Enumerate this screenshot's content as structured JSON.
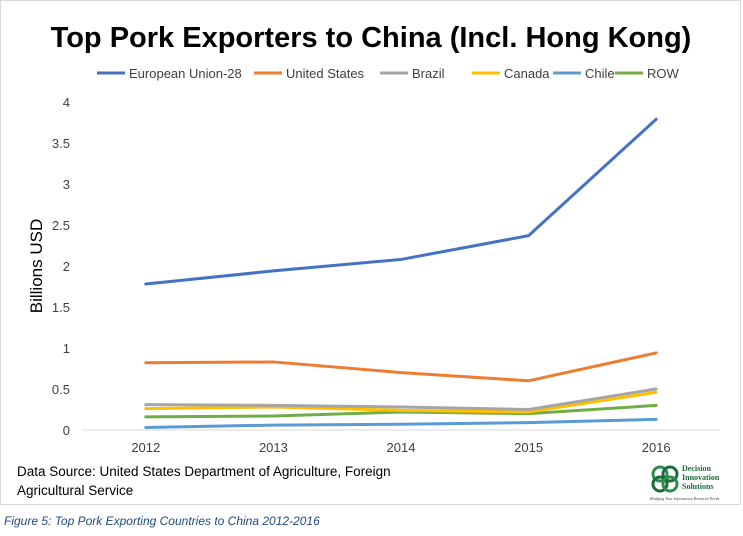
{
  "chart_data": {
    "type": "line",
    "title": "Top Pork Exporters to China (Incl. Hong Kong)",
    "xlabel": "",
    "ylabel": "Billions USD",
    "categories": [
      "2012",
      "2013",
      "2014",
      "2015",
      "2016"
    ],
    "ylim": [
      0,
      4
    ],
    "yticks": [
      "0",
      "0.5",
      "1",
      "1.5",
      "2",
      "2.5",
      "3",
      "3.5",
      "4"
    ],
    "grid": false,
    "legend_position": "top",
    "series": [
      {
        "name": "European Union-28",
        "color": "#4472c4",
        "values": [
          1.78,
          1.94,
          2.08,
          2.37,
          3.79
        ]
      },
      {
        "name": "United States",
        "color": "#ed7d31",
        "values": [
          0.82,
          0.83,
          0.7,
          0.6,
          0.94
        ]
      },
      {
        "name": "Brazil",
        "color": "#a5a5a5",
        "values": [
          0.31,
          0.3,
          0.28,
          0.25,
          0.5
        ]
      },
      {
        "name": "Canada",
        "color": "#ffc000",
        "values": [
          0.26,
          0.28,
          0.24,
          0.22,
          0.46
        ]
      },
      {
        "name": "Chile",
        "color": "#5b9bd5",
        "values": [
          0.03,
          0.06,
          0.07,
          0.09,
          0.13
        ]
      },
      {
        "name": "ROW",
        "color": "#70ad47",
        "values": [
          0.16,
          0.17,
          0.22,
          0.2,
          0.3
        ]
      }
    ]
  },
  "source_note": "Data Source: United States Department of Agriculture, Foreign Agricultural Service",
  "logo": {
    "name": "Decision Innovation Solutions",
    "line1": "Decision",
    "line2": "Innovation",
    "line3": "Solutions",
    "tagline": "Bridging Your Information Research Needs",
    "color": "#1e6b3a"
  },
  "caption": "Figure 5: Top Pork Exporting Countries to China 2012-2016"
}
